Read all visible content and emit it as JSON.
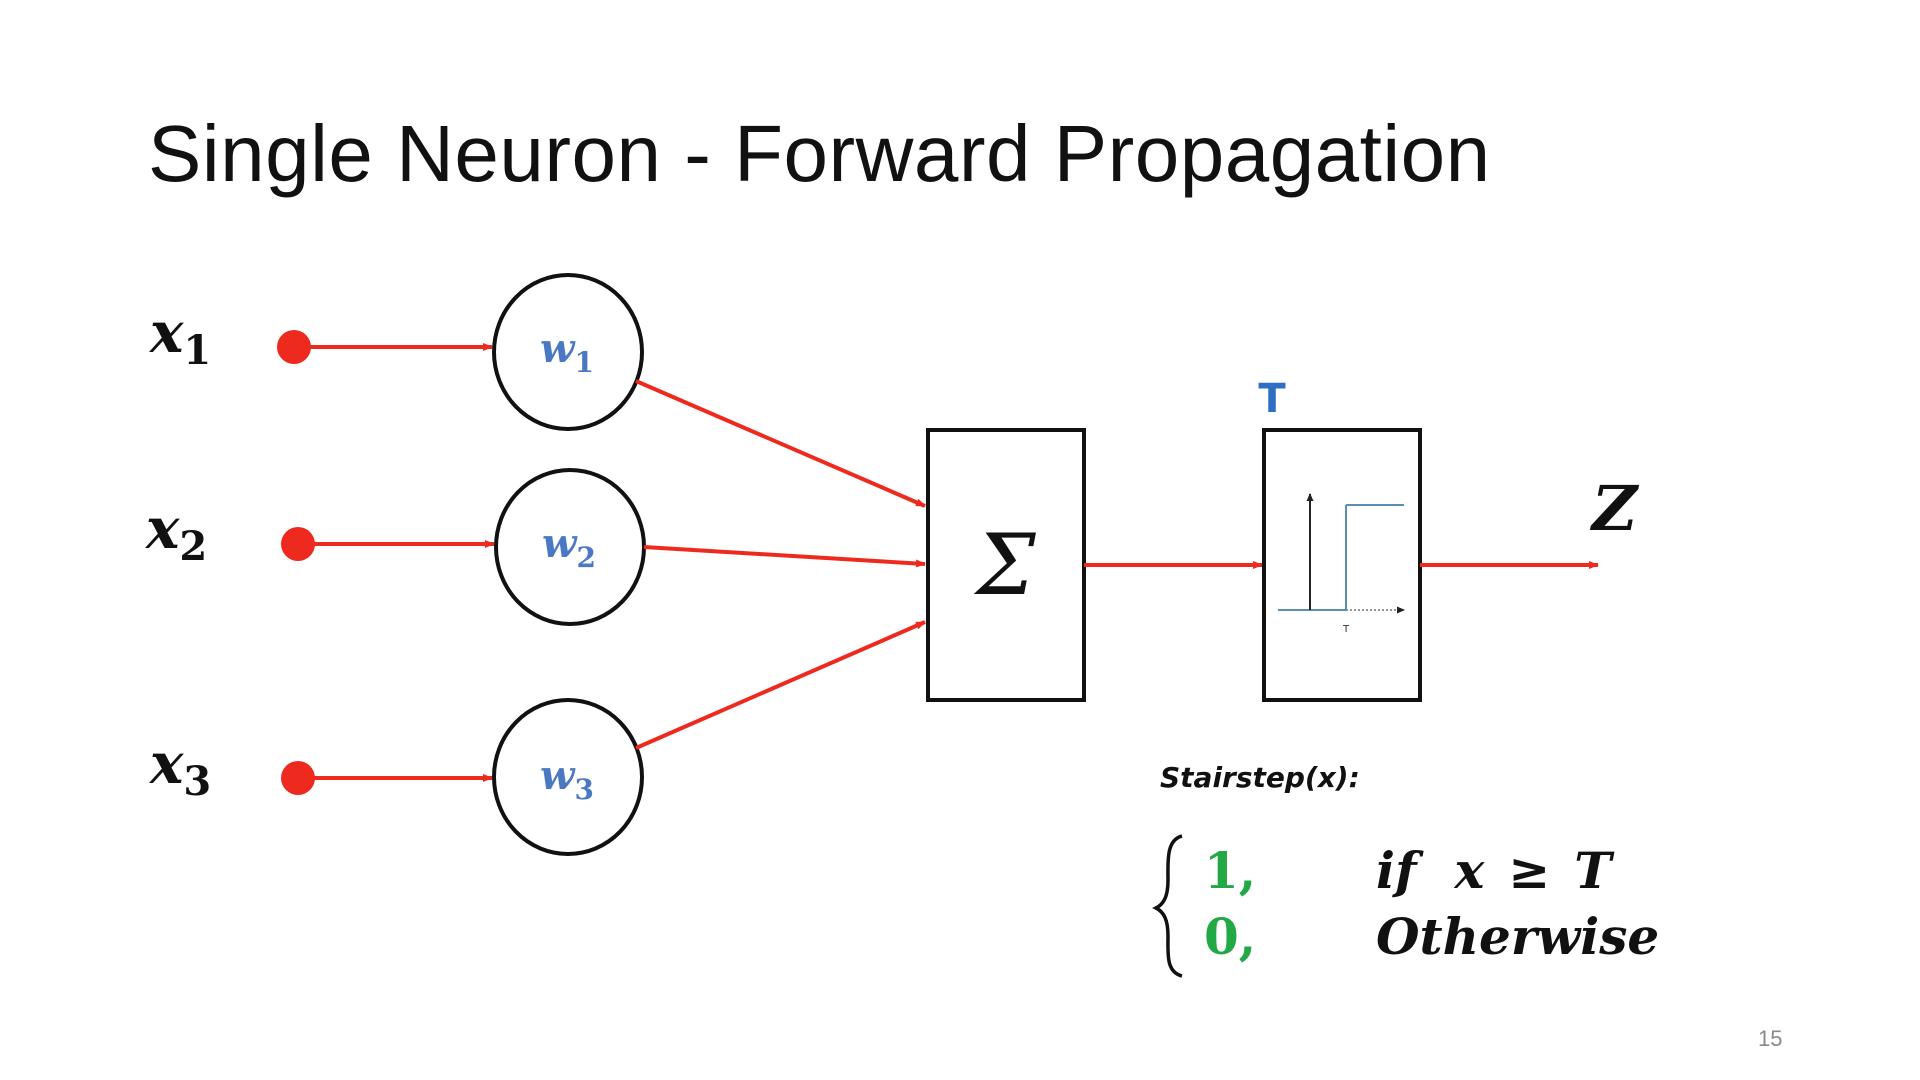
{
  "slide": {
    "title": "Single Neuron - Forward Propagation",
    "page_number": "15"
  },
  "inputs": [
    {
      "symbol": "x",
      "subscript": "1"
    },
    {
      "symbol": "x",
      "subscript": "2"
    },
    {
      "symbol": "x",
      "subscript": "3"
    }
  ],
  "weights": [
    {
      "symbol": "w",
      "subscript": "1"
    },
    {
      "symbol": "w",
      "subscript": "2"
    },
    {
      "symbol": "w",
      "subscript": "3"
    }
  ],
  "summation": {
    "symbol": "Σ"
  },
  "activation": {
    "threshold_label": "T",
    "plot_tick_label": "T"
  },
  "output": {
    "symbol": "Z"
  },
  "formula": {
    "name": "Stairstep(x):",
    "case1_value": "1,",
    "case1_condition_if": "if",
    "case1_condition_x": "x",
    "case1_condition_op": "≥",
    "case1_condition_T": "T",
    "case2_value": "0,",
    "case2_condition": "Otherwise"
  },
  "colors": {
    "arrow": "#ee2a1f",
    "input_dot": "#ee2a1f",
    "weight_text": "#4a78c2",
    "threshold_label": "#2e6fc4",
    "formula_values": "#22a844",
    "step_line": "#5a8fb0"
  }
}
